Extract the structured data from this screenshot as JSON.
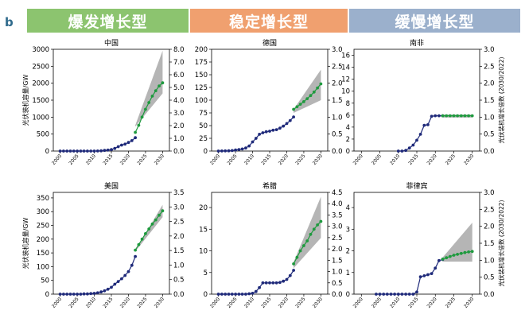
{
  "panel_label": "b",
  "category_headers": [
    {
      "label": "爆发增长型",
      "color": "#8cc46f"
    },
    {
      "label": "稳定增长型",
      "color": "#f0a06f"
    },
    {
      "label": "缓慢增长型",
      "color": "#9bb0cc"
    }
  ],
  "colors": {
    "historical": "#1f2a7a",
    "projection": "#1e9a3e",
    "band": "#a8a8a8"
  },
  "chart_data": [
    {
      "type": "line",
      "title": "中国",
      "ylabel": "光伏装机容量/GW",
      "ylabel_right": "",
      "xlim": [
        1998,
        2032
      ],
      "ylim": [
        0,
        3000
      ],
      "y2lim": [
        0,
        8.0
      ],
      "xticks": [
        "2000",
        "2005",
        "2010",
        "2015",
        "2020",
        "2025",
        "2030"
      ],
      "yticks": [
        "0",
        "500",
        "1000",
        "1500",
        "2000",
        "2500",
        "3000"
      ],
      "y2ticks": [
        "0.0",
        "1.0",
        "2.0",
        "3.0",
        "4.0",
        "5.0",
        "6.0",
        "7.0",
        "8.0"
      ],
      "series": [
        {
          "kind": "historical",
          "x": [
            2000,
            2001,
            2002,
            2003,
            2004,
            2005,
            2006,
            2007,
            2008,
            2009,
            2010,
            2011,
            2012,
            2013,
            2014,
            2015,
            2016,
            2017,
            2018,
            2019,
            2020,
            2021,
            2022
          ],
          "y": [
            0,
            0,
            0,
            0,
            0,
            0,
            0,
            0,
            0,
            0,
            1,
            3,
            7,
            19,
            28,
            43,
            77,
            130,
            175,
            205,
            253,
            308,
            393
          ]
        },
        {
          "kind": "projection",
          "x": [
            2022,
            2023,
            2024,
            2025,
            2026,
            2027,
            2028,
            2029,
            2030
          ],
          "y": [
            550,
            760,
            1000,
            1230,
            1430,
            1620,
            1780,
            1920,
            2010
          ]
        }
      ],
      "band": {
        "x": [
          2022,
          2030
        ],
        "lower": [
          720,
          1700
        ],
        "upper": [
          760,
          2960
        ]
      }
    },
    {
      "type": "line",
      "title": "德国",
      "ylabel": "",
      "ylabel_right": "",
      "xlim": [
        1998,
        2032
      ],
      "ylim": [
        0,
        200
      ],
      "y2lim": [
        0,
        3.0
      ],
      "xticks": [
        "2000",
        "2005",
        "2010",
        "2015",
        "2020",
        "2025",
        "2030"
      ],
      "yticks": [
        "0",
        "25",
        "50",
        "75",
        "100",
        "125",
        "150",
        "175",
        "200"
      ],
      "y2ticks": [
        "0.0",
        "0.5",
        "1.0",
        "1.5",
        "2.0",
        "2.5",
        "3.0"
      ],
      "series": [
        {
          "kind": "historical",
          "x": [
            2000,
            2001,
            2002,
            2003,
            2004,
            2005,
            2006,
            2007,
            2008,
            2009,
            2010,
            2011,
            2012,
            2013,
            2014,
            2015,
            2016,
            2017,
            2018,
            2019,
            2020,
            2021,
            2022
          ],
          "y": [
            0,
            0.2,
            0.3,
            0.4,
            1,
            2,
            3,
            4,
            6,
            10,
            18,
            25,
            33,
            36,
            38,
            39,
            41,
            42,
            45,
            49,
            54,
            60,
            67
          ]
        },
        {
          "kind": "projection",
          "x": [
            2022,
            2023,
            2024,
            2025,
            2026,
            2027,
            2028,
            2029,
            2030
          ],
          "y": [
            82,
            87,
            92,
            97,
            103,
            109,
            116,
            124,
            132
          ]
        }
      ],
      "band": {
        "x": [
          2022,
          2030
        ],
        "lower": [
          75,
          100
        ],
        "upper": [
          82,
          160
        ]
      }
    },
    {
      "type": "line",
      "title": "南非",
      "ylabel": "",
      "ylabel_right": "光伏装机增长倍数 (2030/2022)",
      "xlim": [
        1998,
        2032
      ],
      "ylim": [
        0,
        17
      ],
      "y2lim": [
        0,
        3.0
      ],
      "xticks": [
        "2000",
        "2005",
        "2010",
        "2015",
        "2020",
        "2025",
        "2030"
      ],
      "yticks": [
        "0",
        "2",
        "4",
        "6",
        "8",
        "10",
        "12",
        "14",
        "16"
      ],
      "y2ticks": [
        "0.0",
        "0.5",
        "1.0",
        "1.5",
        "2.0",
        "2.5",
        "3.0"
      ],
      "series": [
        {
          "kind": "historical",
          "x": [
            2010,
            2011,
            2012,
            2013,
            2014,
            2015,
            2016,
            2017,
            2018,
            2019,
            2020,
            2021,
            2022
          ],
          "y": [
            0,
            0,
            0.1,
            0.5,
            1.0,
            1.8,
            2.8,
            4.3,
            4.4,
            5.8,
            5.9,
            5.9,
            5.9
          ]
        },
        {
          "kind": "projection",
          "x": [
            2022,
            2023,
            2024,
            2025,
            2026,
            2027,
            2028,
            2029,
            2030
          ],
          "y": [
            5.9,
            5.9,
            5.9,
            5.9,
            5.9,
            5.9,
            5.9,
            5.9,
            5.9
          ]
        }
      ],
      "band": {
        "x": [
          2022,
          2030
        ],
        "lower": [
          5.6,
          5.6
        ],
        "upper": [
          6.1,
          6.1
        ]
      }
    },
    {
      "type": "line",
      "title": "美国",
      "ylabel": "光伏装机容量/GW",
      "ylabel_right": "",
      "xlim": [
        1998,
        2032
      ],
      "ylim": [
        0,
        370
      ],
      "y2lim": [
        0,
        3.5
      ],
      "xticks": [
        "2000",
        "2005",
        "2010",
        "2015",
        "2020",
        "2025",
        "2030"
      ],
      "yticks": [
        "0",
        "50",
        "100",
        "150",
        "200",
        "250",
        "300",
        "350"
      ],
      "y2ticks": [
        "0.0",
        "0.5",
        "1.0",
        "1.5",
        "2.0",
        "2.5",
        "3.0",
        "3.5"
      ],
      "series": [
        {
          "kind": "historical",
          "x": [
            2000,
            2001,
            2002,
            2003,
            2004,
            2005,
            2006,
            2007,
            2008,
            2009,
            2010,
            2011,
            2012,
            2013,
            2014,
            2015,
            2016,
            2017,
            2018,
            2019,
            2020,
            2021,
            2022
          ],
          "y": [
            0,
            0,
            0,
            0,
            0,
            0,
            0,
            1,
            1,
            2,
            3,
            5,
            8,
            12,
            18,
            25,
            36,
            46,
            56,
            68,
            82,
            105,
            137
          ]
        },
        {
          "kind": "projection",
          "x": [
            2022,
            2023,
            2024,
            2025,
            2026,
            2027,
            2028,
            2029,
            2030
          ],
          "y": [
            160,
            180,
            200,
            220,
            237,
            255,
            270,
            287,
            303
          ]
        }
      ],
      "band": {
        "x": [
          2022,
          2030
        ],
        "lower": [
          155,
          280
        ],
        "upper": [
          160,
          325
        ]
      }
    },
    {
      "type": "line",
      "title": "希腊",
      "ylabel": "",
      "ylabel_right": "",
      "xlim": [
        1998,
        2032
      ],
      "ylim": [
        0,
        23.5
      ],
      "y2lim": [
        0,
        4.5
      ],
      "xticks": [
        "2000",
        "2005",
        "2010",
        "2015",
        "2020",
        "2025",
        "2030"
      ],
      "yticks": [
        "0",
        "5",
        "10",
        "15",
        "20"
      ],
      "y2ticks": [
        "0.0",
        "0.5",
        "1.0",
        "1.5",
        "2.0",
        "2.5",
        "3.0",
        "3.5",
        "4.0",
        "4.5"
      ],
      "series": [
        {
          "kind": "historical",
          "x": [
            2000,
            2001,
            2002,
            2003,
            2004,
            2005,
            2006,
            2007,
            2008,
            2009,
            2010,
            2011,
            2012,
            2013,
            2014,
            2015,
            2016,
            2017,
            2018,
            2019,
            2020,
            2021,
            2022
          ],
          "y": [
            0,
            0,
            0,
            0,
            0,
            0,
            0,
            0,
            0,
            0.1,
            0.2,
            0.6,
            1.5,
            2.6,
            2.6,
            2.6,
            2.6,
            2.6,
            2.7,
            3.0,
            3.4,
            4.3,
            5.5
          ]
        },
        {
          "kind": "projection",
          "x": [
            2022,
            2023,
            2024,
            2025,
            2026,
            2027,
            2028,
            2029,
            2030
          ],
          "y": [
            7.0,
            8.5,
            10,
            11.2,
            12.3,
            13.8,
            15,
            16,
            16.8
          ]
        }
      ],
      "band": {
        "x": [
          2022,
          2030
        ],
        "lower": [
          6.0,
          13.0
        ],
        "upper": [
          7.4,
          22.5
        ]
      }
    },
    {
      "type": "line",
      "title": "菲律宾",
      "ylabel": "",
      "ylabel_right": "光伏装机增长倍数 (2030/2022)",
      "xlim": [
        1998,
        2032
      ],
      "ylim": [
        0,
        4.7
      ],
      "y2lim": [
        0,
        3.0
      ],
      "xticks": [
        "2000",
        "2005",
        "2010",
        "2015",
        "2020",
        "2025",
        "2030"
      ],
      "yticks": [
        "0",
        "1",
        "2",
        "3",
        "4"
      ],
      "y2ticks": [
        "0.0",
        "0.5",
        "1.0",
        "1.5",
        "2.0",
        "2.5",
        "3.0"
      ],
      "series": [
        {
          "kind": "historical",
          "x": [
            2004,
            2005,
            2006,
            2007,
            2008,
            2009,
            2010,
            2011,
            2012,
            2013,
            2014,
            2015,
            2016,
            2017,
            2018,
            2019,
            2020,
            2021,
            2022
          ],
          "y": [
            0,
            0,
            0,
            0,
            0,
            0,
            0,
            0,
            0,
            0,
            0,
            0.1,
            0.8,
            0.85,
            0.9,
            0.95,
            1.2,
            1.55,
            1.6
          ]
        },
        {
          "kind": "projection",
          "x": [
            2022,
            2023,
            2024,
            2025,
            2026,
            2027,
            2028,
            2029,
            2030
          ],
          "y": [
            1.62,
            1.68,
            1.74,
            1.8,
            1.84,
            1.88,
            1.92,
            1.95,
            1.97
          ]
        }
      ],
      "band": {
        "x": [
          2022,
          2030
        ],
        "lower": [
          1.5,
          1.5
        ],
        "upper": [
          1.7,
          3.3
        ]
      }
    }
  ]
}
